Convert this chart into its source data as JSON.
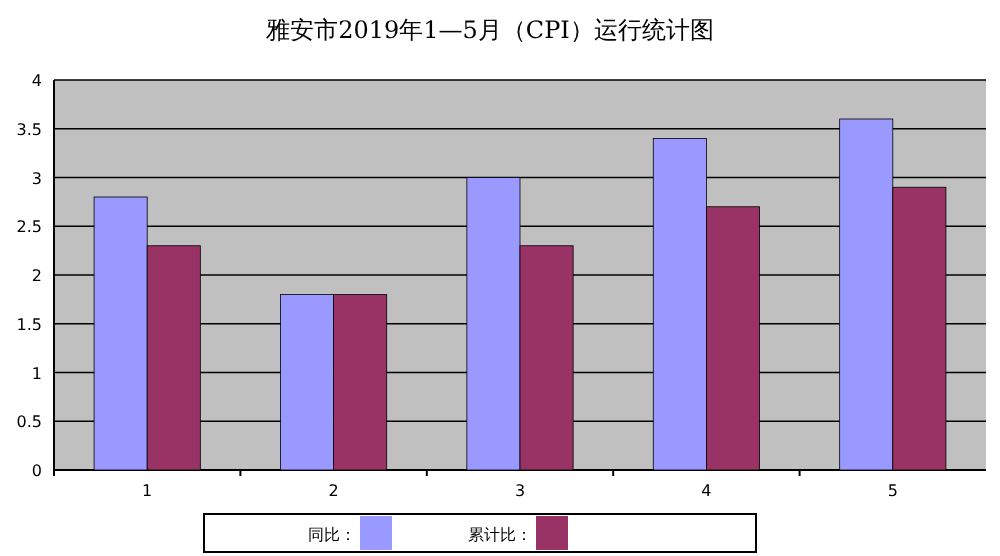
{
  "chart_data": {
    "type": "bar",
    "title": "雅安市2019年1—5月（CPI）运行统计图",
    "categories": [
      "1",
      "2",
      "3",
      "4",
      "5"
    ],
    "series": [
      {
        "name": "同比：",
        "color": "#9999ff",
        "values": [
          2.8,
          1.8,
          3.0,
          3.4,
          3.6
        ]
      },
      {
        "name": "累计比：",
        "color": "#993366",
        "values": [
          2.3,
          1.8,
          2.3,
          2.7,
          2.9
        ]
      }
    ],
    "ylim": [
      0,
      4
    ],
    "yticks": [
      0,
      0.5,
      1,
      1.5,
      2,
      2.5,
      3,
      3.5,
      4
    ],
    "grid": "y",
    "legend": "bottom"
  }
}
